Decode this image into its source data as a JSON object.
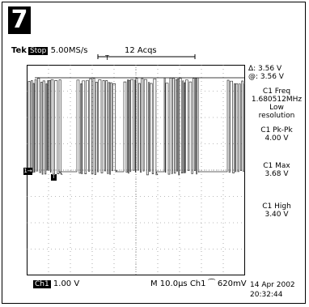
{
  "badge": "7",
  "header": {
    "tek": "Tek",
    "stop": "Stop",
    "rate": "5.00MS/s",
    "acqs": "12 Acqs",
    "trig_marker": "T"
  },
  "measurements": {
    "delta": "Δ: 3.56 V",
    "at": "@: 3.56 V",
    "freq_label": "C1 Freq",
    "freq_value": "1.680512MHz",
    "freq_note1": "Low",
    "freq_note2": "resolution",
    "pkpk_label": "C1 Pk-Pk",
    "pkpk_value": "4.00 V",
    "max_label": "C1 Max",
    "max_value": "3.68 V",
    "high_label": "C1 High",
    "high_value": "3.40 V"
  },
  "footer": {
    "ch_tag": "Ch1",
    "ch_scale": "1.00 V",
    "timebase": "M 10.0µs  Ch1  ⁀   620mV",
    "date": "14 Apr 2002",
    "time": "20:32:44"
  },
  "markers": {
    "ch1": "1→",
    "trig": "T"
  },
  "colors": {
    "trace": "#333333",
    "grid": "#777777",
    "bg": "#ffffff"
  }
}
